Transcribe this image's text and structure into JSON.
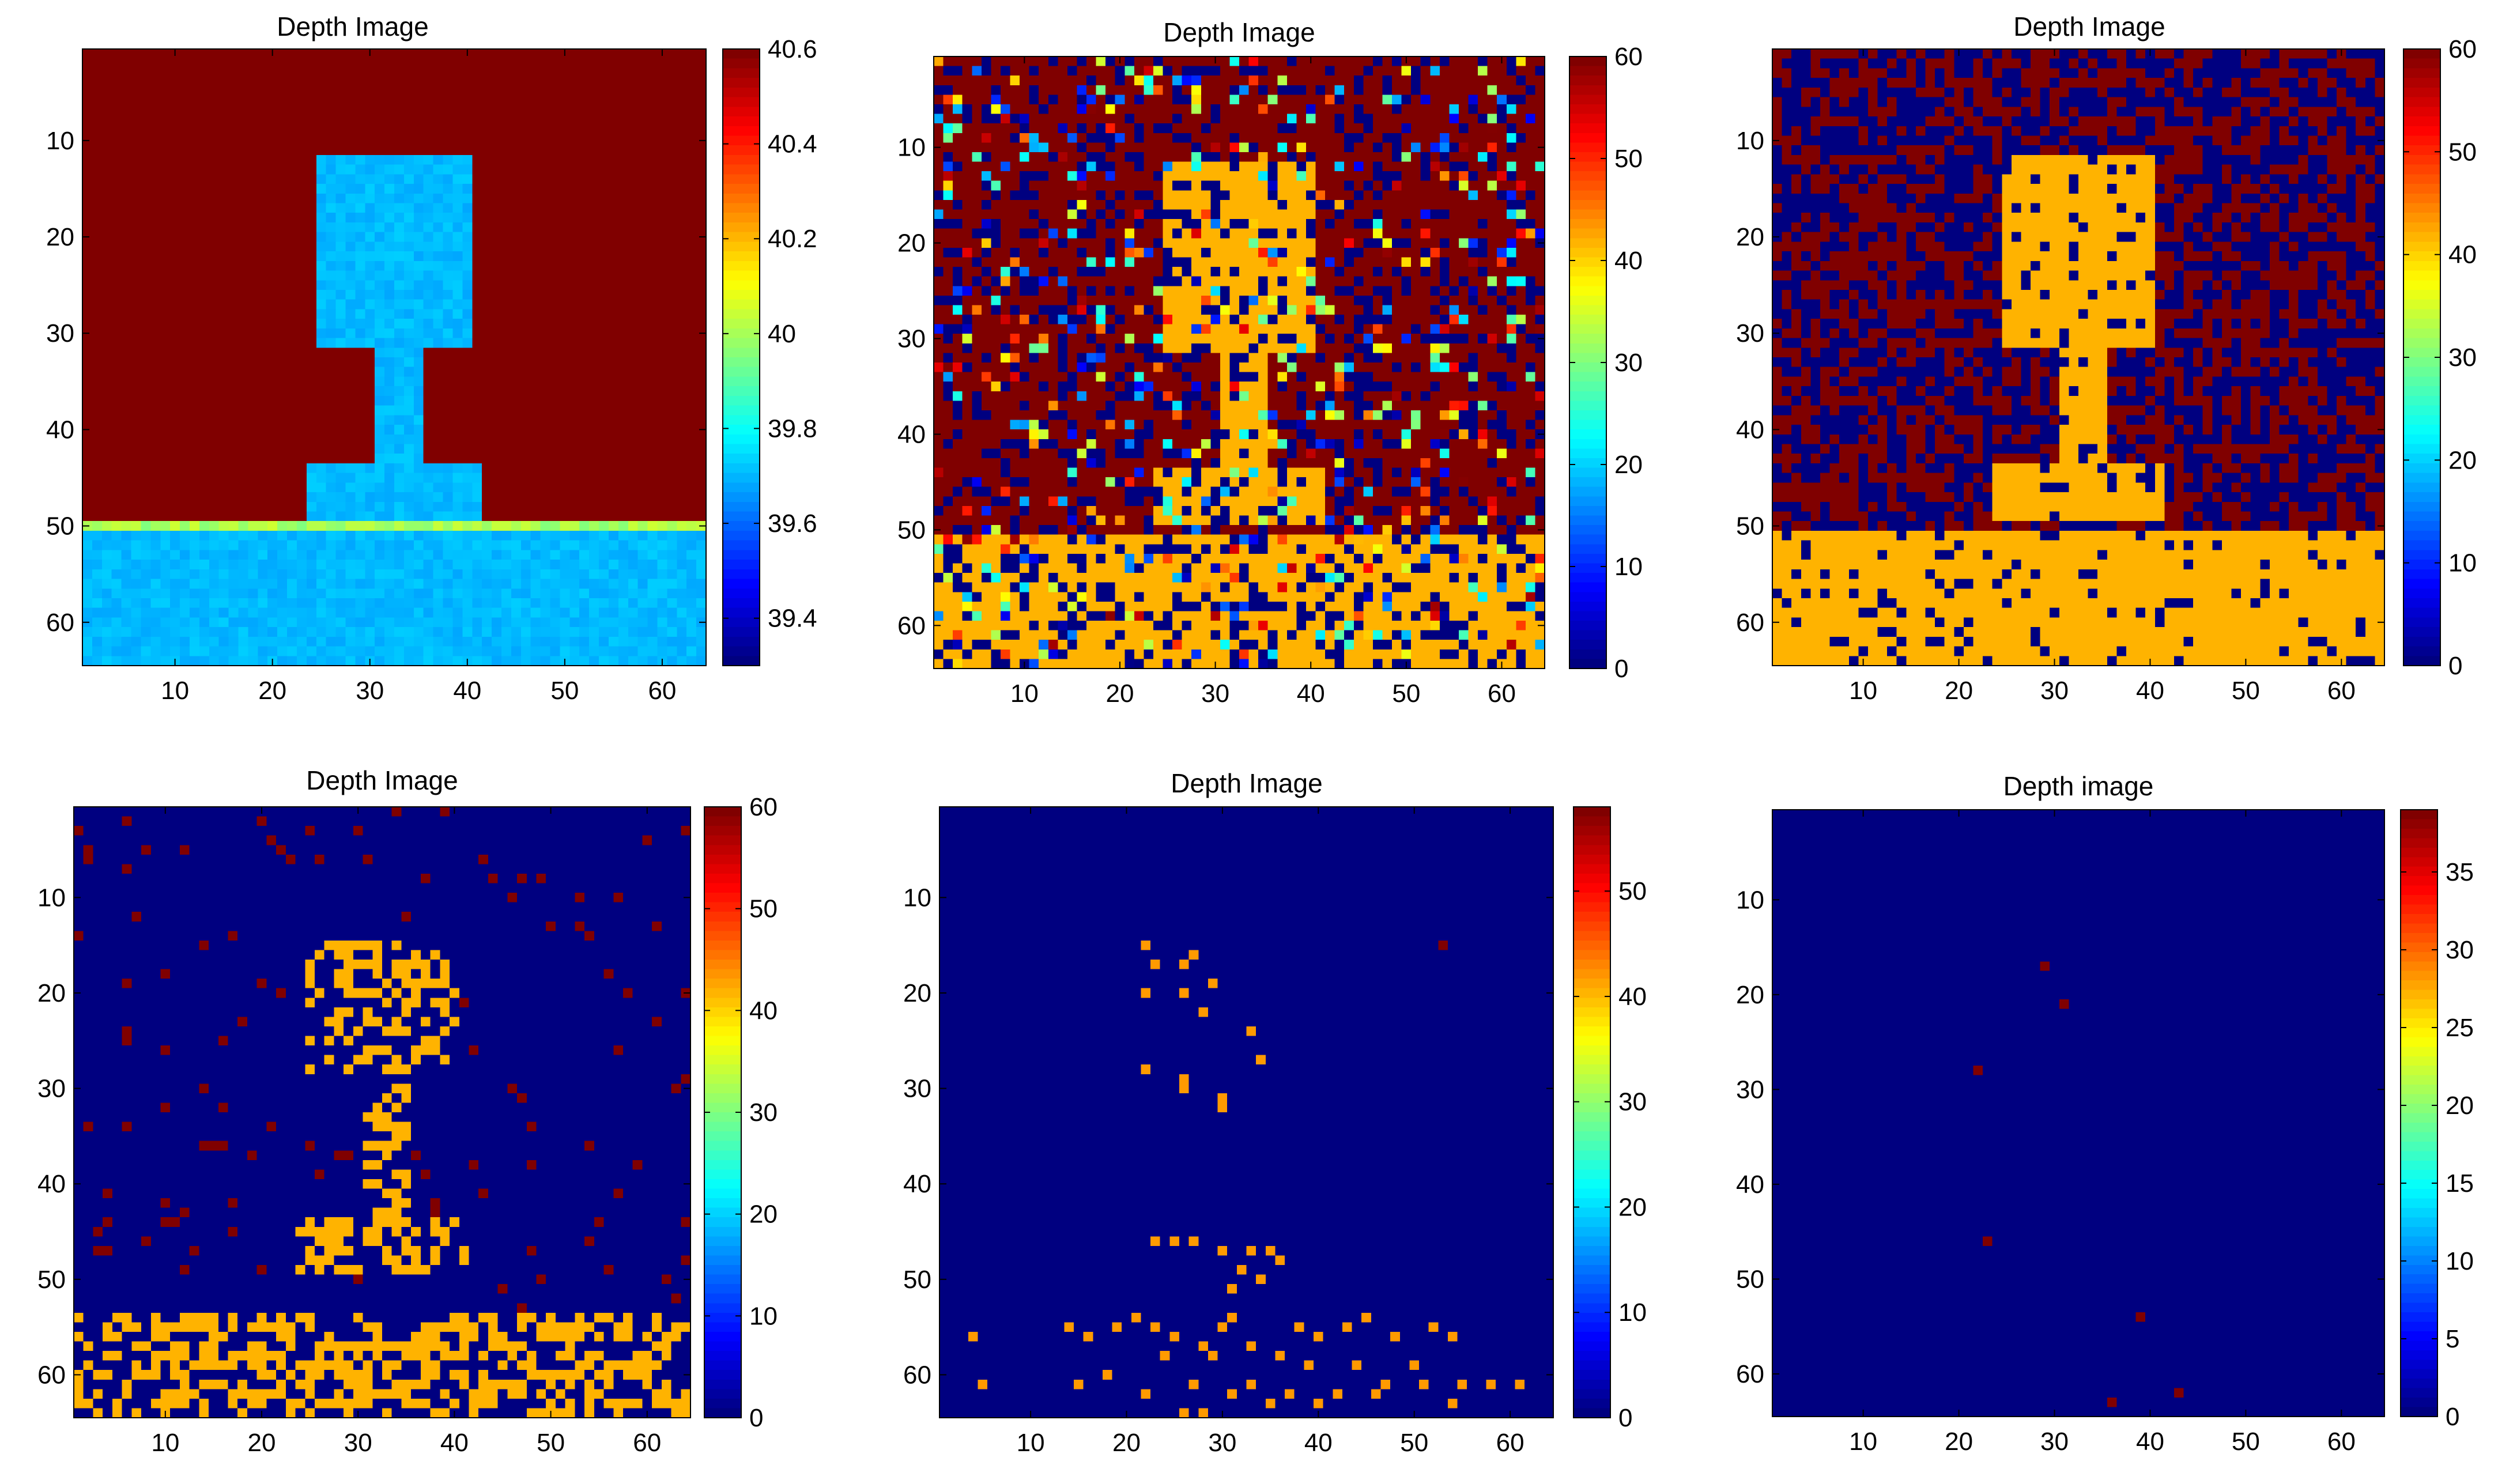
{
  "chart_data": [
    {
      "type": "heatmap",
      "title": "Depth Image",
      "grid_size": 64,
      "xticks": [
        10,
        20,
        30,
        40,
        50,
        60
      ],
      "yticks": [
        10,
        20,
        30,
        40,
        50,
        60
      ],
      "colorbar": {
        "min": 39.3,
        "max": 40.6,
        "ticks": [
          "39.4",
          "39.6",
          "39.8",
          "40",
          "40.2",
          "40.4",
          "40.6"
        ],
        "tick_values": [
          39.4,
          39.6,
          39.8,
          40,
          40.2,
          40.4,
          40.6
        ]
      },
      "scene": {
        "mode": "clean",
        "background_value": 40.6,
        "object_value": 39.7,
        "floor_value": 39.7,
        "edge_value": 40.0,
        "noise_value": 0,
        "noise_density": 0,
        "scatter": []
      }
    },
    {
      "type": "heatmap",
      "title": "Depth Image",
      "grid_size": 64,
      "xticks": [
        10,
        20,
        30,
        40,
        50,
        60
      ],
      "yticks": [
        10,
        20,
        30,
        40,
        50,
        60
      ],
      "colorbar": {
        "min": 0,
        "max": 60,
        "ticks": [
          "0",
          "10",
          "20",
          "30",
          "40",
          "50",
          "60"
        ],
        "tick_values": [
          0,
          10,
          20,
          30,
          40,
          50,
          60
        ]
      },
      "scene": {
        "mode": "noisy",
        "background_value": 60,
        "object_value": 42,
        "floor_value": 42,
        "edge_value": 42,
        "noise_value": 0,
        "noise_density": 0.35,
        "scatter": []
      }
    },
    {
      "type": "heatmap",
      "title": "Depth Image",
      "grid_size": 64,
      "xticks": [
        10,
        20,
        30,
        40,
        50,
        60
      ],
      "yticks": [
        10,
        20,
        30,
        40,
        50,
        60
      ],
      "colorbar": {
        "min": 0,
        "max": 60,
        "ticks": [
          "0",
          "10",
          "20",
          "30",
          "40",
          "50",
          "60"
        ],
        "tick_values": [
          0,
          10,
          20,
          30,
          40,
          50,
          60
        ]
      },
      "scene": {
        "mode": "checker",
        "background_value": 0,
        "object_value": 42,
        "floor_value": 42,
        "edge_value": 42,
        "noise_value": 60,
        "noise_density": 0.5,
        "scatter": []
      }
    },
    {
      "type": "heatmap",
      "title": "Depth Image",
      "grid_size": 64,
      "xticks": [
        10,
        20,
        30,
        40,
        50,
        60
      ],
      "yticks": [
        10,
        20,
        30,
        40,
        50,
        60
      ],
      "colorbar": {
        "min": 0,
        "max": 60,
        "ticks": [
          "0",
          "10",
          "20",
          "30",
          "40",
          "50",
          "60"
        ],
        "tick_values": [
          0,
          10,
          20,
          30,
          40,
          50,
          60
        ]
      },
      "scene": {
        "mode": "sparse",
        "background_value": 0,
        "object_value": 42,
        "floor_value": 42,
        "edge_value": 42,
        "noise_value": 60,
        "noise_density": 0.03,
        "scatter": []
      }
    },
    {
      "type": "heatmap",
      "title": "Depth Image",
      "grid_size": 64,
      "xticks": [
        10,
        20,
        30,
        40,
        50,
        60
      ],
      "yticks": [
        10,
        20,
        30,
        40,
        50,
        60
      ],
      "colorbar": {
        "min": 0,
        "max": 58,
        "ticks": [
          "0",
          "10",
          "20",
          "30",
          "40",
          "50"
        ],
        "tick_values": [
          0,
          10,
          20,
          30,
          40,
          50
        ]
      },
      "scene": {
        "mode": "points",
        "background_value": 0,
        "object_value": 42,
        "floor_value": 42,
        "edge_value": 42,
        "noise_value": 58,
        "noise_density": 0,
        "scatter": [
          [
            22,
            15,
            42
          ],
          [
            23,
            17,
            42
          ],
          [
            26,
            17,
            42
          ],
          [
            27,
            16,
            42
          ],
          [
            29,
            19,
            42
          ],
          [
            22,
            20,
            42
          ],
          [
            26,
            20,
            42
          ],
          [
            28,
            22,
            42
          ],
          [
            33,
            24,
            42
          ],
          [
            34,
            27,
            42
          ],
          [
            22,
            28,
            42
          ],
          [
            26,
            29,
            42
          ],
          [
            26,
            30,
            42
          ],
          [
            30,
            31,
            42
          ],
          [
            30,
            32,
            42
          ],
          [
            53,
            15,
            58
          ],
          [
            23,
            46,
            42
          ],
          [
            25,
            46,
            42
          ],
          [
            27,
            46,
            42
          ],
          [
            30,
            47,
            42
          ],
          [
            33,
            47,
            42
          ],
          [
            35,
            47,
            42
          ],
          [
            36,
            48,
            42
          ],
          [
            32,
            49,
            42
          ],
          [
            34,
            50,
            42
          ],
          [
            31,
            51,
            42
          ],
          [
            4,
            56,
            42
          ],
          [
            14,
            55,
            42
          ],
          [
            16,
            56,
            42
          ],
          [
            19,
            55,
            42
          ],
          [
            21,
            54,
            42
          ],
          [
            23,
            55,
            42
          ],
          [
            25,
            56,
            42
          ],
          [
            28,
            57,
            42
          ],
          [
            30,
            55,
            42
          ],
          [
            31,
            54,
            42
          ],
          [
            33,
            57,
            42
          ],
          [
            38,
            55,
            42
          ],
          [
            40,
            56,
            42
          ],
          [
            43,
            55,
            42
          ],
          [
            45,
            54,
            42
          ],
          [
            48,
            56,
            42
          ],
          [
            52,
            55,
            42
          ],
          [
            54,
            56,
            42
          ],
          [
            24,
            58,
            42
          ],
          [
            29,
            58,
            42
          ],
          [
            36,
            58,
            42
          ],
          [
            39,
            59,
            42
          ],
          [
            44,
            59,
            42
          ],
          [
            50,
            59,
            42
          ],
          [
            5,
            61,
            42
          ],
          [
            15,
            61,
            42
          ],
          [
            18,
            60,
            42
          ],
          [
            22,
            62,
            42
          ],
          [
            27,
            61,
            42
          ],
          [
            31,
            62,
            42
          ],
          [
            33,
            61,
            42
          ],
          [
            37,
            62,
            42
          ],
          [
            42,
            62,
            42
          ],
          [
            47,
            61,
            42
          ],
          [
            51,
            61,
            42
          ],
          [
            55,
            61,
            42
          ],
          [
            58,
            61,
            42
          ],
          [
            61,
            61,
            42
          ],
          [
            26,
            64,
            42
          ],
          [
            28,
            64,
            42
          ],
          [
            35,
            63,
            42
          ],
          [
            40,
            63,
            42
          ],
          [
            46,
            62,
            42
          ],
          [
            54,
            63,
            42
          ]
        ]
      }
    },
    {
      "type": "heatmap",
      "title": "Depth image",
      "grid_size": 64,
      "xticks": [
        10,
        20,
        30,
        40,
        50,
        60
      ],
      "yticks": [
        10,
        20,
        30,
        40,
        50,
        60
      ],
      "colorbar": {
        "min": 0,
        "max": 39,
        "ticks": [
          "0",
          "5",
          "10",
          "15",
          "20",
          "25",
          "30",
          "35"
        ],
        "tick_values": [
          0,
          5,
          10,
          15,
          20,
          25,
          30,
          35
        ]
      },
      "scene": {
        "mode": "points",
        "background_value": 0,
        "object_value": 39,
        "floor_value": 39,
        "edge_value": 39,
        "noise_value": 39,
        "noise_density": 0,
        "scatter": [
          [
            29,
            17,
            39
          ],
          [
            31,
            21,
            39
          ],
          [
            22,
            28,
            39
          ],
          [
            23,
            46,
            39
          ],
          [
            39,
            54,
            39
          ],
          [
            36,
            63,
            39
          ],
          [
            43,
            62,
            39
          ]
        ]
      }
    }
  ]
}
